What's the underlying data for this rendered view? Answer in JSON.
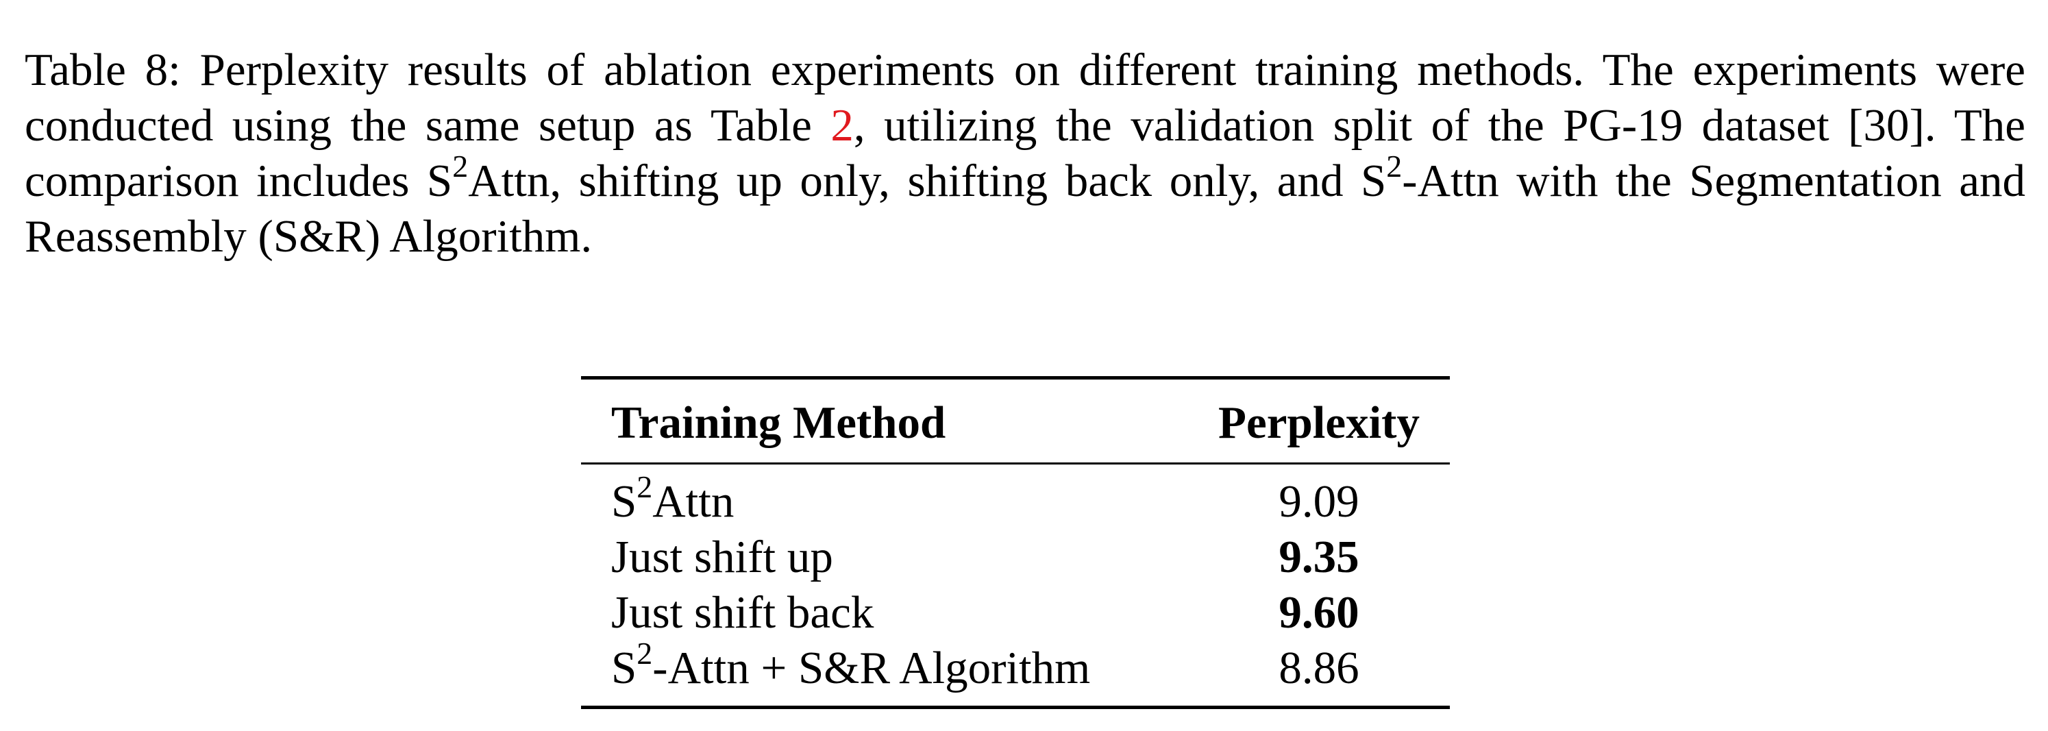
{
  "caption": {
    "label": "Table 8:",
    "text_1": "Perplexity results of ablation experiments on different training methods. The experiments were conducted using the same setup as Table ",
    "table_ref": "2",
    "text_2": ", utilizing the validation split of the PG-19 dataset [30]. The comparison includes S",
    "sup_1": "2",
    "text_3": "Attn, shifting up only, shifting back only, and S",
    "sup_2": "2",
    "text_4": "-Attn with the Segmentation and Reassembly (S&R) Algorithm."
  },
  "table": {
    "headers": [
      "Training Method",
      "Perplexity"
    ],
    "rows": [
      {
        "method_prefix": "S",
        "method_sup": "2",
        "method_suffix": "Attn",
        "perplexity": "9.09",
        "bold": false
      },
      {
        "method_prefix": "Just shift up",
        "method_sup": "",
        "method_suffix": "",
        "perplexity": "9.35",
        "bold": true
      },
      {
        "method_prefix": "Just shift back",
        "method_sup": "",
        "method_suffix": "",
        "perplexity": "9.60",
        "bold": true
      },
      {
        "method_prefix": "S",
        "method_sup": "2",
        "method_suffix": "-Attn + S&R Algorithm",
        "perplexity": "8.86",
        "bold": false
      }
    ]
  }
}
